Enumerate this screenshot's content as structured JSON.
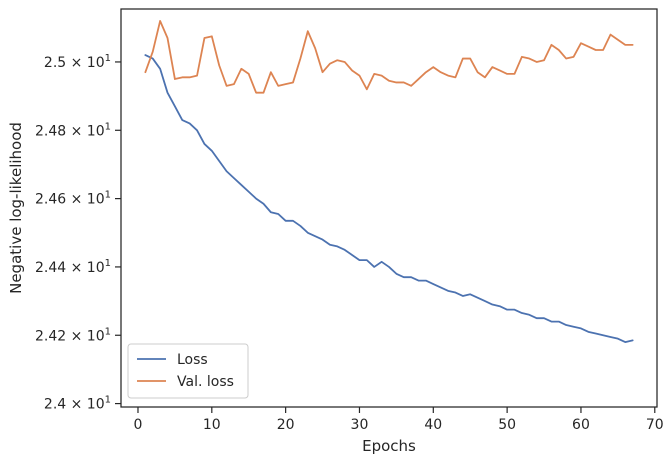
{
  "chart_data": {
    "type": "line",
    "title": "",
    "xlabel": "Epochs",
    "ylabel": "Negative log-likelihood",
    "xlim": [
      -2.3,
      70.3
    ],
    "ylim": [
      23.99,
      25.155
    ],
    "x_ticks": [
      0,
      10,
      20,
      30,
      40,
      50,
      60,
      70
    ],
    "y_ticks": [
      {
        "value": 24.0,
        "label": "2.4 × 10",
        "exp": "1"
      },
      {
        "value": 24.2,
        "label": "2.42 × 10",
        "exp": "1"
      },
      {
        "value": 24.4,
        "label": "2.44 × 10",
        "exp": "1"
      },
      {
        "value": 24.6,
        "label": "2.46 × 10",
        "exp": "1"
      },
      {
        "value": 24.8,
        "label": "2.48 × 10",
        "exp": "1"
      },
      {
        "value": 25.0,
        "label": "2.5 × 10",
        "exp": "1"
      }
    ],
    "grid": false,
    "legend_position": "lower-left",
    "x": [
      1,
      2,
      3,
      4,
      5,
      6,
      7,
      8,
      9,
      10,
      11,
      12,
      13,
      14,
      15,
      16,
      17,
      18,
      19,
      20,
      21,
      22,
      23,
      24,
      25,
      26,
      27,
      28,
      29,
      30,
      31,
      32,
      33,
      34,
      35,
      36,
      37,
      38,
      39,
      40,
      41,
      42,
      43,
      44,
      45,
      46,
      47,
      48,
      49,
      50,
      51,
      52,
      53,
      54,
      55,
      56,
      57,
      58,
      59,
      60,
      61,
      62,
      63,
      64,
      65,
      66,
      67
    ],
    "series": [
      {
        "name": "Loss",
        "color": "#4c72b0",
        "values": [
          25.02,
          25.01,
          24.98,
          24.91,
          24.87,
          24.83,
          24.82,
          24.8,
          24.76,
          24.74,
          24.71,
          24.68,
          24.66,
          24.64,
          24.62,
          24.6,
          24.585,
          24.56,
          24.555,
          24.535,
          24.535,
          24.52,
          24.5,
          24.49,
          24.48,
          24.465,
          24.46,
          24.45,
          24.435,
          24.42,
          24.42,
          24.4,
          24.415,
          24.4,
          24.38,
          24.37,
          24.37,
          24.36,
          24.36,
          24.35,
          24.34,
          24.33,
          24.325,
          24.315,
          24.32,
          24.31,
          24.3,
          24.29,
          24.285,
          24.275,
          24.275,
          24.265,
          24.26,
          24.25,
          24.25,
          24.24,
          24.24,
          24.23,
          24.225,
          24.22,
          24.21,
          24.205,
          24.2,
          24.195,
          24.19,
          24.18,
          24.185
        ]
      },
      {
        "name": "Val. loss",
        "color": "#dd8452",
        "values": [
          24.97,
          25.03,
          25.12,
          25.07,
          24.95,
          24.955,
          24.955,
          24.96,
          25.07,
          25.075,
          24.99,
          24.93,
          24.935,
          24.98,
          24.965,
          24.91,
          24.91,
          24.97,
          24.93,
          24.935,
          24.94,
          25.01,
          25.09,
          25.04,
          24.97,
          24.995,
          25.005,
          25.0,
          24.975,
          24.96,
          24.92,
          24.965,
          24.96,
          24.945,
          24.94,
          24.94,
          24.93,
          24.95,
          24.97,
          24.985,
          24.97,
          24.96,
          24.955,
          25.01,
          25.01,
          24.97,
          24.955,
          24.985,
          24.975,
          24.965,
          24.965,
          25.015,
          25.01,
          25.0,
          25.005,
          25.05,
          25.035,
          25.01,
          25.015,
          25.055,
          25.045,
          25.035,
          25.035,
          25.08,
          25.065,
          25.05,
          25.05
        ]
      }
    ]
  }
}
